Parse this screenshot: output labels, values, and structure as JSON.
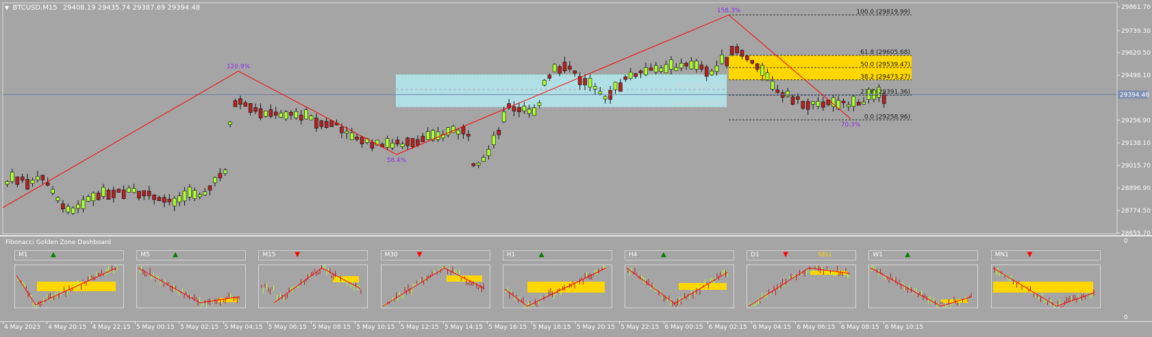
{
  "chart": {
    "symbol_header": "BTCUSD,M15",
    "ohlc": "29408.19 29435.74 29387.69 29394.48",
    "current_price": "29394.48",
    "colors": {
      "background": "#a5a5a5",
      "bull_candle": "#adff2f",
      "bear_candle": "#b22222",
      "zigzag": "#ff0000",
      "zone_fill": "#b0e0e6",
      "golden_zone": "#ffd700",
      "pivot_label": "#8a2be2",
      "price_line": "#6b7fa8"
    }
  },
  "chart_data": {
    "type": "candlestick",
    "title": "BTCUSD,M15",
    "y_axis_ticks": [
      "29861.70",
      "29739.30",
      "29620.50",
      "29498.10",
      "29256.90",
      "29138.10",
      "29015.70",
      "28896.90",
      "28774.50",
      "28655.70"
    ],
    "ylim": [
      28655.7,
      29861.7
    ],
    "x_axis_ticks": [
      "4 May 2023",
      "4 May 20:15",
      "4 May 22:15",
      "5 May 00:15",
      "5 May 02:15",
      "5 May 04:15",
      "5 May 06:15",
      "5 May 08:15",
      "5 May 10:15",
      "5 May 12:15",
      "5 May 14:15",
      "5 May 16:15",
      "5 May 18:15",
      "5 May 20:15",
      "5 May 22:15",
      "6 May 00:15",
      "6 May 02:15",
      "6 May 04:15",
      "6 May 06:15",
      "6 May 08:15",
      "6 May 10:15"
    ],
    "zigzag_pivots": [
      {
        "label": "",
        "price": 28790
      },
      {
        "label": "120.9%",
        "price": 29520
      },
      {
        "label": "58.4%",
        "price": 29075
      },
      {
        "label": "158.3%",
        "price": 29819.99
      },
      {
        "label": "70.3%",
        "price": 29265
      }
    ],
    "fib_levels": [
      {
        "label": "100.0 (29819.99)",
        "price": 29819.99
      },
      {
        "label": "61.8 (29605.68)",
        "price": 29605.68
      },
      {
        "label": "50.0 (29539.47)",
        "price": 29539.47
      },
      {
        "label": "38.2 (29473.27)",
        "price": 29473.27
      },
      {
        "label": "23.6 (29391.36)",
        "price": 29391.36
      },
      {
        "label": "0.0 (29258.96)",
        "price": 29258.96
      }
    ],
    "old_zone_levels": [
      {
        "label": "50.0 (29421.13)",
        "price": 29421.13
      },
      {
        "label": "61.6 (29327.00)",
        "price": 29327.0
      }
    ]
  },
  "dashboard": {
    "title": "Fibonacci Golden Zone Dashboard",
    "scale_top": "0",
    "scale_bottom": "0",
    "panels": [
      {
        "tf": "M1",
        "dir": "up",
        "signal": ""
      },
      {
        "tf": "M5",
        "dir": "up",
        "signal": ""
      },
      {
        "tf": "M15",
        "dir": "down",
        "signal": ""
      },
      {
        "tf": "M30",
        "dir": "down",
        "signal": ""
      },
      {
        "tf": "H1",
        "dir": "up",
        "signal": ""
      },
      {
        "tf": "H4",
        "dir": "up",
        "signal": ""
      },
      {
        "tf": "D1",
        "dir": "down",
        "signal": "SELL"
      },
      {
        "tf": "W1",
        "dir": "up",
        "signal": ""
      },
      {
        "tf": "MN1",
        "dir": "down",
        "signal": ""
      }
    ]
  }
}
